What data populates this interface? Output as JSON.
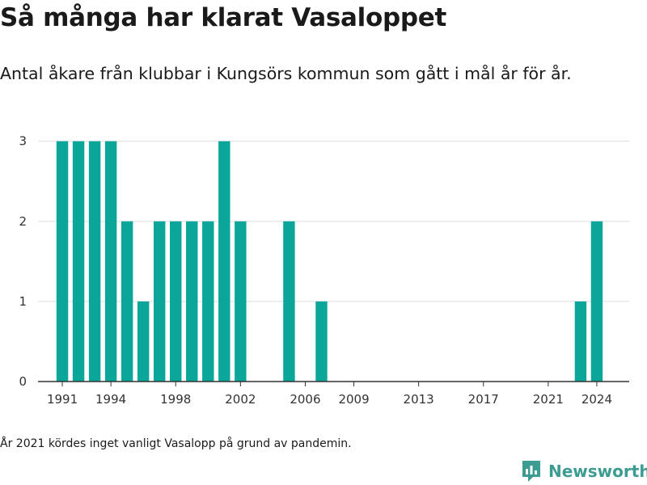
{
  "title": "Så många har klarat Vasaloppet",
  "subtitle": "Antal åkare från klubbar i Kungsörs kommun som gått i mål år för år.",
  "footnote": "År 2021 kördes inget vanligt Vasalopp på grund av pandemin.",
  "logo_text": "Newsworthy",
  "colors": {
    "bar": "#0aa69a",
    "grid": "#dcdcdc",
    "axis": "#333333",
    "brand": "#3d9c91"
  },
  "chart_data": {
    "type": "bar",
    "title": "Så många har klarat Vasaloppet",
    "xlabel": "",
    "ylabel": "",
    "x": [
      1991,
      1992,
      1993,
      1994,
      1995,
      1996,
      1997,
      1998,
      1999,
      2000,
      2001,
      2002,
      2005,
      2007,
      2023,
      2024
    ],
    "values": [
      3,
      3,
      3,
      3,
      2,
      1,
      2,
      2,
      2,
      2,
      3,
      2,
      2,
      1,
      1,
      2
    ],
    "xlim": [
      1989.5,
      2026
    ],
    "ylim": [
      0,
      3.3
    ],
    "yticks": [
      0,
      1,
      2,
      3
    ],
    "xticks": [
      "1991",
      "1994",
      "1998",
      "2002",
      "2006",
      "2009",
      "2013",
      "2017",
      "2021",
      "2024"
    ],
    "grid": true
  }
}
